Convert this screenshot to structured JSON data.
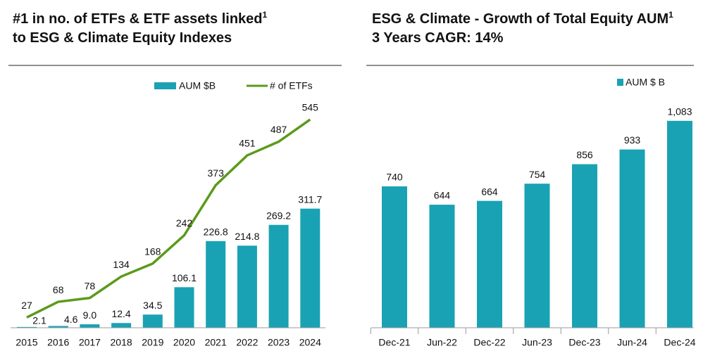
{
  "chart_data": [
    {
      "type": "combo",
      "title": [
        "#1 in no. of ETFs & ETF assets linked",
        "to ESG & Climate Equity Indexes"
      ],
      "title_sup": "1",
      "categories": [
        "2015",
        "2016",
        "2017",
        "2018",
        "2019",
        "2020",
        "2021",
        "2022",
        "2023",
        "2024"
      ],
      "series": [
        {
          "name": "AUM $B",
          "type": "bar",
          "color": "#19a2b3",
          "axis": "y",
          "values": [
            2.1,
            4.6,
            9.0,
            12.4,
            34.5,
            106.1,
            226.8,
            214.8,
            269.2,
            311.7
          ],
          "value_labels": [
            "2.1",
            "4.6",
            "9.0",
            "12.4",
            "34.5",
            "106.1",
            "226.8",
            "214.8",
            "269.2",
            "311.7"
          ]
        },
        {
          "name": "# of ETFs",
          "type": "line",
          "color": "#5b9a1b",
          "axis": "y2",
          "values": [
            27,
            68,
            78,
            134,
            168,
            242,
            373,
            451,
            487,
            545
          ]
        }
      ],
      "ylim": [
        0,
        600
      ],
      "y2lim": [
        0,
        600
      ]
    },
    {
      "type": "bar",
      "title": [
        "ESG & Climate - Growth of Total Equity AUM",
        "3 Years CAGR: 14%"
      ],
      "title_sup": "1",
      "categories": [
        "Dec-21",
        "Jun-22",
        "Dec-22",
        "Jun-23",
        "Dec-23",
        "Jun-24",
        "Dec-24"
      ],
      "series": [
        {
          "name": "AUM $ B",
          "color": "#19a2b3",
          "values": [
            740,
            644,
            664,
            754,
            856,
            933,
            1083
          ],
          "value_labels": [
            "740",
            "644",
            "664",
            "754",
            "856",
            "933",
            "1,083"
          ]
        }
      ],
      "ylim": [
        0,
        1200
      ]
    }
  ]
}
